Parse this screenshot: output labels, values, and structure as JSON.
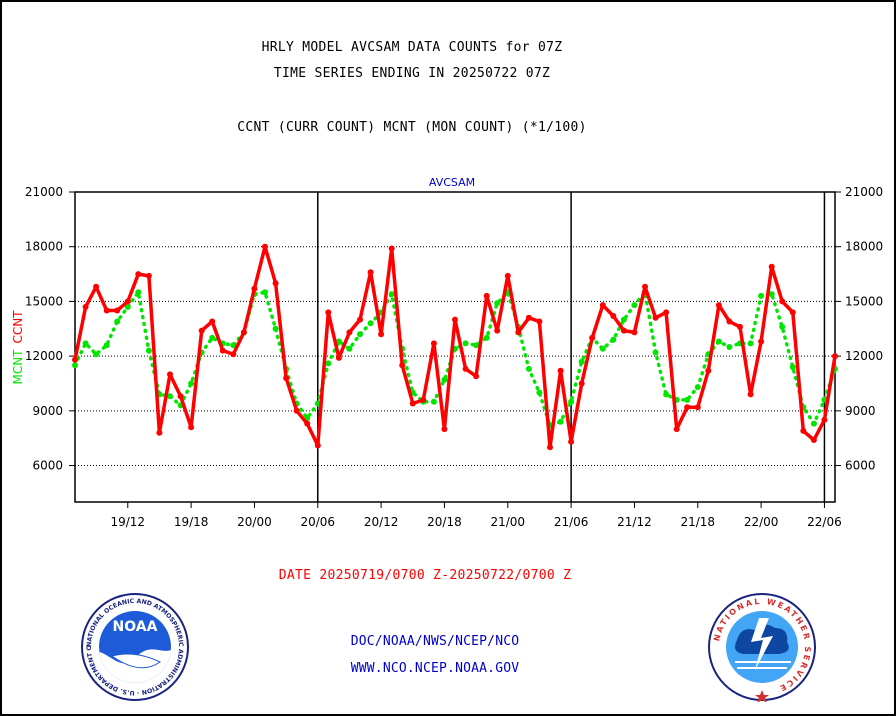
{
  "header": {
    "title1": "HRLY MODEL AVCSAM DATA COUNTS for 07Z",
    "title2": "TIME SERIES ENDING IN 20250722 07Z",
    "subtitle": "CCNT (CURR COUNT) MCNT (MON COUNT) (*1/100)"
  },
  "footer": {
    "date_range": "DATE 20250719/0700 Z-20250722/0700 Z",
    "org": "DOC/NOAA/NWS/NCEP/NCO",
    "url": "WWW.NCO.NCEP.NOAA.GOV"
  },
  "logos": {
    "noaa_center": "NOAA",
    "noaa_ring": "NATIONAL OCEANIC AND ATMOSPHERIC ADMINISTRATION · U.S. DEPARTMENT OF COMMERCE ·",
    "nws_ring": "NATIONAL WEATHER SERVICE"
  },
  "chart_data": {
    "type": "line",
    "title": "AVCSAM",
    "ylabel_ccnt": "CCNT",
    "ylabel_mcnt": "MCNT",
    "ylim": [
      4000,
      21000
    ],
    "xlim": [
      0,
      72
    ],
    "yticks": [
      6000,
      9000,
      12000,
      15000,
      18000,
      21000
    ],
    "ytick_labels": [
      "6000",
      "9000",
      "12000",
      "15000",
      "18000",
      "21000"
    ],
    "gridlines_y": [
      6000,
      9000,
      12000,
      15000,
      18000
    ],
    "xticks": [
      {
        "x": 5,
        "label": "19/12"
      },
      {
        "x": 11,
        "label": "19/18"
      },
      {
        "x": 17,
        "label": "20/00"
      },
      {
        "x": 23,
        "label": "20/06"
      },
      {
        "x": 29,
        "label": "20/12"
      },
      {
        "x": 35,
        "label": "20/18"
      },
      {
        "x": 41,
        "label": "21/00"
      },
      {
        "x": 47,
        "label": "21/06"
      },
      {
        "x": 53,
        "label": "21/12"
      },
      {
        "x": 59,
        "label": "21/18"
      },
      {
        "x": 65,
        "label": "22/00"
      },
      {
        "x": 71,
        "label": "22/06"
      }
    ],
    "day_lines": [
      23,
      47,
      71
    ],
    "colors": {
      "ccnt": "#ff0000",
      "mcnt": "#00e600",
      "axis": "#000000",
      "title": "#0000cc"
    },
    "series": [
      {
        "name": "CCNT",
        "values": [
          11800,
          14700,
          15800,
          14500,
          14500,
          15000,
          16500,
          16400,
          7800,
          11000,
          9800,
          8100,
          13400,
          13900,
          12300,
          12100,
          13300,
          15700,
          18000,
          16000,
          10800,
          9000,
          8300,
          7100,
          14400,
          11900,
          13300,
          14000,
          16600,
          13200,
          17900,
          11500,
          9400,
          9600,
          12700,
          8000,
          14000,
          11300,
          10900,
          15300,
          13400,
          16400,
          13300,
          14100,
          13900,
          7000,
          11200,
          7300,
          10500,
          13000,
          14800,
          14200,
          13400,
          13300,
          15800,
          14100,
          14400,
          8000,
          9200,
          9200,
          11200,
          14800,
          13900,
          13600,
          9900,
          12800,
          16900,
          15000,
          14400,
          7900,
          7400,
          8500,
          12000
        ]
      },
      {
        "name": "MCNT",
        "values": [
          11500,
          12700,
          12100,
          12600,
          13900,
          14700,
          15500,
          12300,
          9900,
          9800,
          9300,
          10500,
          12200,
          13000,
          12700,
          12600,
          13300,
          15400,
          15500,
          13500,
          11300,
          9400,
          8600,
          9400,
          11600,
          12800,
          12400,
          13200,
          13800,
          14400,
          15400,
          12400,
          10000,
          9500,
          9500,
          10700,
          12400,
          12700,
          12600,
          13000,
          14900,
          15500,
          13600,
          11300,
          10000,
          8200,
          8400,
          9500,
          11700,
          13000,
          12400,
          12900,
          14000,
          14800,
          15500,
          12200,
          9900,
          9600,
          9600,
          10300,
          12100,
          12800,
          12500,
          12700,
          12700,
          15300,
          15400,
          13600,
          11400,
          9200,
          8300,
          9600,
          11300
        ]
      }
    ]
  }
}
